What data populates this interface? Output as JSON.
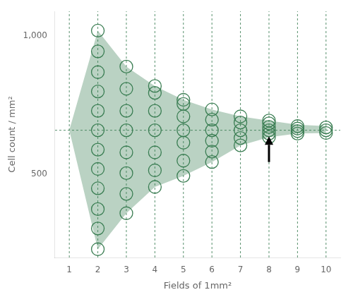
{
  "chart_data": {
    "type": "scatter",
    "xlabel": "Fields of 1mm²",
    "ylabel": "Cell count / mm²",
    "x": [
      1,
      2,
      3,
      4,
      5,
      6,
      7,
      8,
      9,
      10
    ],
    "envelope_upper": [
      660,
      1020,
      890,
      820,
      770,
      735,
      710,
      695,
      680,
      675
    ],
    "envelope_lower": [
      660,
      230,
      360,
      455,
      495,
      545,
      605,
      635,
      648,
      650
    ],
    "circles": [
      [],
      [
        230,
        305,
        375,
        450,
        520,
        590,
        660,
        730,
        800,
        870,
        945,
        1020
      ],
      [
        360,
        430,
        505,
        580,
        660,
        730,
        810,
        890
      ],
      [
        455,
        515,
        580,
        660,
        730,
        795,
        820
      ],
      [
        495,
        550,
        615,
        660,
        710,
        755,
        770
      ],
      [
        545,
        583,
        622,
        660,
        698,
        735
      ],
      [
        605,
        632,
        660,
        688,
        710
      ],
      [
        635,
        648,
        660,
        672,
        685,
        695
      ],
      [
        648,
        657,
        666,
        675
      ],
      [
        650,
        660,
        670
      ]
    ],
    "mean": 660,
    "arrow": {
      "x": 8,
      "from": 545,
      "to": 638
    },
    "color": "#3a7d52",
    "marker": "circle",
    "xlim": [
      0.5,
      10.5
    ],
    "ylim": [
      200,
      1090
    ],
    "xticks": [
      1,
      2,
      3,
      4,
      5,
      6,
      7,
      8,
      9,
      10
    ],
    "yticks": [
      500,
      1000
    ],
    "grid": false
  }
}
